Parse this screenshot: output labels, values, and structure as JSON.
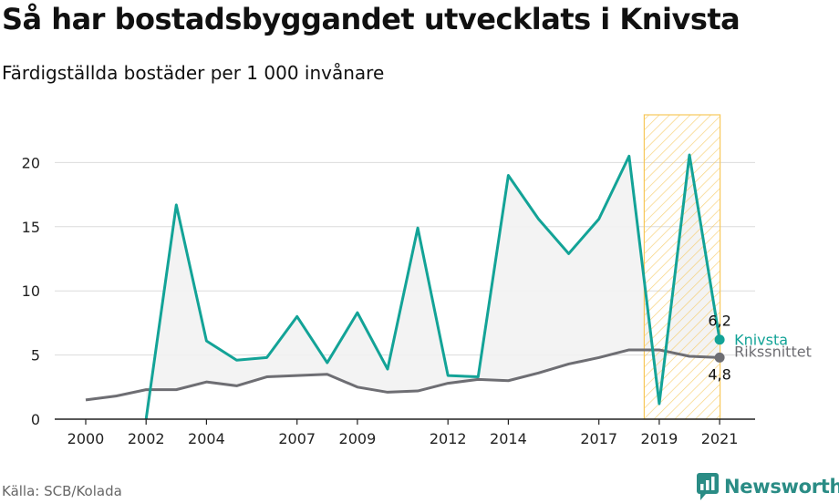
{
  "title": "Så har bostadsbyggandet utvecklats i Knivsta",
  "subtitle": "Färdigställda bostäder per 1 000 invånare",
  "source": "Källa: SCB/Kolada",
  "brand": "Newsworthy",
  "colors": {
    "knivsta": "#13a397",
    "riks": "#6e6e73",
    "highlight": "#f7c85b",
    "fill": "#f2f2f2"
  },
  "chart_data": {
    "type": "line",
    "x": [
      2000,
      2001,
      2002,
      2003,
      2004,
      2005,
      2006,
      2007,
      2008,
      2009,
      2010,
      2011,
      2012,
      2013,
      2014,
      2015,
      2016,
      2017,
      2018,
      2019,
      2020,
      2021
    ],
    "xticks": [
      "2000",
      "2002",
      "2004",
      "2007",
      "2009",
      "2012",
      "2014",
      "2017",
      "2019",
      "2021"
    ],
    "yticks": [
      "0",
      "5",
      "10",
      "15",
      "20"
    ],
    "ylim": [
      0,
      22
    ],
    "highlight_range": [
      2019,
      2021
    ],
    "series": [
      {
        "name": "Knivsta",
        "color": "#13a397",
        "start": 2002,
        "values": [
          null,
          null,
          0,
          16.7,
          6.1,
          4.6,
          4.8,
          8.0,
          4.4,
          8.3,
          3.9,
          14.9,
          3.4,
          3.3,
          19.0,
          15.6,
          12.9,
          15.6,
          20.5,
          1.2,
          20.6,
          6.2
        ],
        "last_label": "6,2"
      },
      {
        "name": "Rikssnittet",
        "color": "#6e6e73",
        "values": [
          1.5,
          1.8,
          2.3,
          2.3,
          2.9,
          2.6,
          3.3,
          3.4,
          3.5,
          2.5,
          2.1,
          2.2,
          2.8,
          3.1,
          3.0,
          3.6,
          4.3,
          4.8,
          5.4,
          5.4,
          4.9,
          4.8
        ],
        "last_label": "4,8"
      }
    ]
  }
}
